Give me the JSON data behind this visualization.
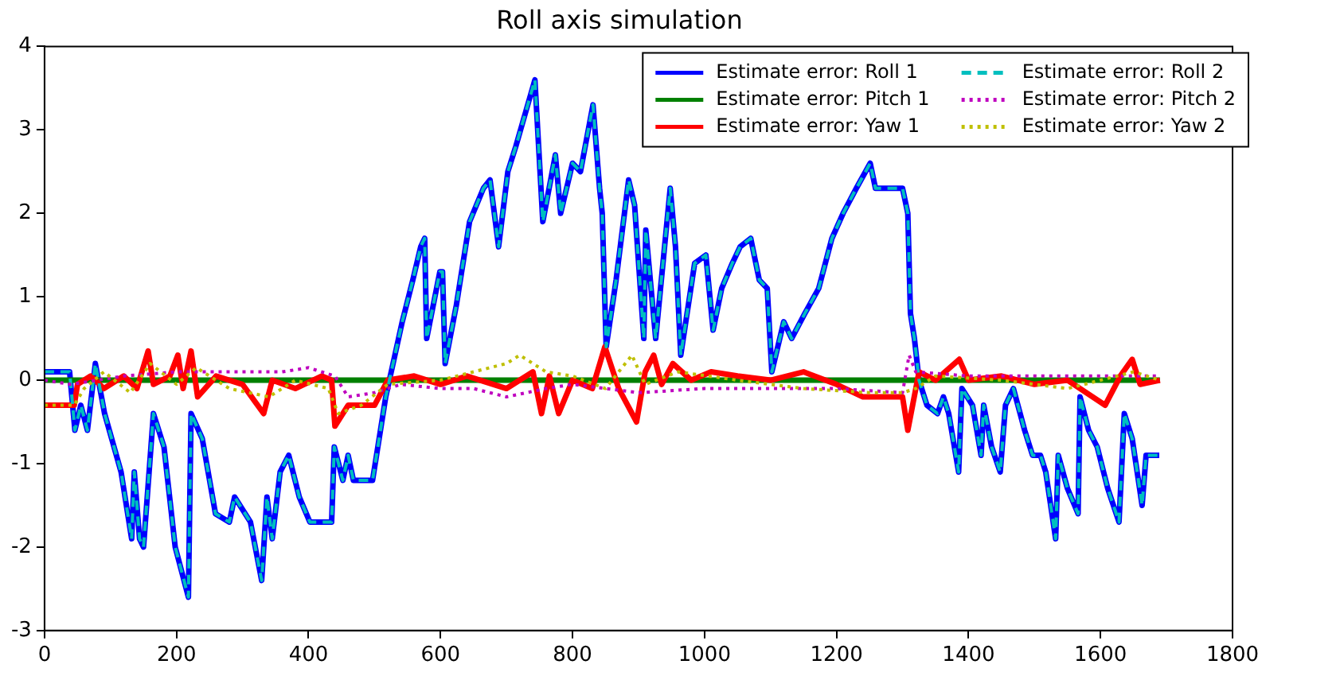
{
  "chart_data": {
    "type": "line",
    "title": "Roll axis simulation",
    "xlim": [
      0,
      1800
    ],
    "xticks": [
      0,
      200,
      400,
      600,
      800,
      1000,
      1200,
      1400,
      1600,
      1800
    ],
    "ylim": [
      -3,
      4
    ],
    "yticks": [
      -3,
      -2,
      -1,
      0,
      1,
      2,
      3,
      4
    ],
    "grid": false,
    "legend": "top right",
    "marker": "none",
    "series": [
      {
        "name": "Estimate error: Roll 1",
        "color": "#0000ff",
        "line_style": "solid",
        "x": [
          0,
          38,
          46,
          55,
          65,
          77,
          91,
          116,
          132,
          136,
          144,
          150,
          165,
          181,
          198,
          218,
          222,
          239,
          259,
          280,
          288,
          312,
          329,
          337,
          345,
          357,
          370,
          386,
          402,
          435,
          439,
          452,
          460,
          468,
          497,
          517,
          542,
          558,
          570,
          576,
          579,
          599,
          603,
          607,
          624,
          644,
          665,
          675,
          688,
          702,
          714,
          743,
          755,
          774,
          782,
          800,
          812,
          831,
          841,
          845,
          851,
          866,
          885,
          894,
          908,
          911,
          919,
          926,
          948,
          956,
          964,
          985,
          1002,
          1013,
          1026,
          1042,
          1054,
          1070,
          1083,
          1095,
          1102,
          1120,
          1132,
          1152,
          1173,
          1193,
          1210,
          1230,
          1251,
          1259,
          1300,
          1308,
          1312,
          1318,
          1325,
          1337,
          1353,
          1362,
          1370,
          1385,
          1390,
          1406,
          1419,
          1423,
          1435,
          1448,
          1456,
          1468,
          1485,
          1497,
          1509,
          1517,
          1532,
          1536,
          1550,
          1566,
          1569,
          1582,
          1595,
          1611,
          1628,
          1636,
          1648,
          1663,
          1669,
          1689
        ],
        "values": [
          0.1,
          0.1,
          -0.6,
          -0.3,
          -0.6,
          0.2,
          -0.4,
          -1.1,
          -1.9,
          -1.1,
          -1.9,
          -2.0,
          -0.4,
          -0.8,
          -2.0,
          -2.6,
          -0.4,
          -0.7,
          -1.6,
          -1.7,
          -1.4,
          -1.7,
          -2.4,
          -1.4,
          -1.9,
          -1.1,
          -0.9,
          -1.4,
          -1.7,
          -1.7,
          -0.8,
          -1.2,
          -0.9,
          -1.2,
          -1.2,
          -0.2,
          0.7,
          1.2,
          1.6,
          1.7,
          0.5,
          1.3,
          1.3,
          0.2,
          0.9,
          1.9,
          2.3,
          2.4,
          1.6,
          2.5,
          2.8,
          3.6,
          1.9,
          2.7,
          2.0,
          2.6,
          2.5,
          3.3,
          2.3,
          2.0,
          0.4,
          1.2,
          2.4,
          2.1,
          0.5,
          1.8,
          1.1,
          0.5,
          2.3,
          1.6,
          0.3,
          1.4,
          1.5,
          0.6,
          1.1,
          1.4,
          1.6,
          1.7,
          1.2,
          1.1,
          0.1,
          0.7,
          0.5,
          0.8,
          1.1,
          1.7,
          2.0,
          2.3,
          2.6,
          2.3,
          2.3,
          2.0,
          0.8,
          0.5,
          0.0,
          -0.3,
          -0.4,
          -0.2,
          -0.4,
          -1.1,
          -0.1,
          -0.3,
          -0.9,
          -0.3,
          -0.8,
          -1.1,
          -0.3,
          -0.1,
          -0.6,
          -0.9,
          -0.9,
          -1.1,
          -1.9,
          -0.9,
          -1.3,
          -1.6,
          -0.2,
          -0.6,
          -0.8,
          -1.3,
          -1.7,
          -0.4,
          -0.7,
          -1.5,
          -0.9,
          -0.9
        ]
      },
      {
        "name": "Estimate error: Pitch 1",
        "color": "#008000",
        "line_style": "solid",
        "x": [
          0,
          1690
        ],
        "values": [
          0,
          0
        ]
      },
      {
        "name": "Estimate error: Yaw 1",
        "color": "#ff0000",
        "line_style": "solid",
        "x": [
          0,
          45,
          50,
          70,
          90,
          120,
          140,
          157,
          165,
          190,
          202,
          210,
          222,
          232,
          260,
          300,
          332,
          345,
          380,
          420,
          435,
          440,
          460,
          500,
          520,
          560,
          600,
          640,
          700,
          740,
          753,
          765,
          779,
          800,
          830,
          849,
          870,
          897,
          910,
          923,
          935,
          952,
          980,
          1010,
          1050,
          1100,
          1150,
          1200,
          1240,
          1300,
          1308,
          1325,
          1350,
          1386,
          1400,
          1450,
          1500,
          1550,
          1607,
          1630,
          1648,
          1660,
          1690
        ],
        "values": [
          -0.3,
          -0.3,
          -0.05,
          0.05,
          -0.1,
          0.05,
          -0.1,
          0.35,
          -0.05,
          0.05,
          0.3,
          -0.1,
          0.35,
          -0.2,
          0.05,
          -0.05,
          -0.4,
          0,
          -0.1,
          0.05,
          0,
          -0.55,
          -0.3,
          -0.3,
          0,
          0.05,
          -0.05,
          0.05,
          -0.1,
          0.1,
          -0.4,
          0.05,
          -0.4,
          0,
          -0.1,
          0.4,
          -0.1,
          -0.5,
          0.1,
          0.3,
          -0.05,
          0.2,
          0,
          0.1,
          0.05,
          0,
          0.1,
          -0.05,
          -0.2,
          -0.2,
          -0.6,
          0.1,
          0,
          0.25,
          0,
          0.05,
          -0.05,
          0,
          -0.3,
          0.05,
          0.25,
          -0.05,
          0
        ]
      },
      {
        "name": "Estimate error: Roll 2",
        "color": "#00bfbf",
        "line_style": "dashed",
        "x": [
          0,
          38,
          46,
          55,
          65,
          77,
          91,
          116,
          132,
          136,
          144,
          150,
          165,
          181,
          198,
          218,
          222,
          239,
          259,
          280,
          288,
          312,
          329,
          337,
          345,
          357,
          370,
          386,
          402,
          435,
          439,
          452,
          460,
          468,
          497,
          517,
          542,
          558,
          570,
          576,
          579,
          599,
          603,
          607,
          624,
          644,
          665,
          675,
          688,
          702,
          714,
          743,
          755,
          774,
          782,
          800,
          812,
          831,
          841,
          845,
          851,
          866,
          885,
          894,
          908,
          911,
          919,
          926,
          948,
          956,
          964,
          985,
          1002,
          1013,
          1026,
          1042,
          1054,
          1070,
          1083,
          1095,
          1102,
          1120,
          1132,
          1152,
          1173,
          1193,
          1210,
          1230,
          1251,
          1259,
          1300,
          1308,
          1312,
          1318,
          1325,
          1337,
          1353,
          1362,
          1370,
          1385,
          1390,
          1406,
          1419,
          1423,
          1435,
          1448,
          1456,
          1468,
          1485,
          1497,
          1509,
          1517,
          1532,
          1536,
          1550,
          1566,
          1569,
          1582,
          1595,
          1611,
          1628,
          1636,
          1648,
          1663,
          1669,
          1689
        ],
        "values": [
          0.1,
          0.1,
          -0.6,
          -0.3,
          -0.6,
          0.2,
          -0.4,
          -1.1,
          -1.9,
          -1.1,
          -1.9,
          -2.0,
          -0.4,
          -0.8,
          -2.0,
          -2.6,
          -0.4,
          -0.7,
          -1.6,
          -1.7,
          -1.4,
          -1.7,
          -2.4,
          -1.4,
          -1.9,
          -1.1,
          -0.9,
          -1.4,
          -1.7,
          -1.7,
          -0.8,
          -1.2,
          -0.9,
          -1.2,
          -1.2,
          -0.2,
          0.7,
          1.2,
          1.6,
          1.7,
          0.5,
          1.3,
          1.3,
          0.2,
          0.9,
          1.9,
          2.3,
          2.4,
          1.6,
          2.5,
          2.8,
          3.6,
          1.9,
          2.7,
          2.0,
          2.6,
          2.5,
          3.3,
          2.3,
          2.0,
          0.4,
          1.2,
          2.4,
          2.1,
          0.5,
          1.8,
          1.1,
          0.5,
          2.3,
          1.6,
          0.3,
          1.4,
          1.5,
          0.6,
          1.1,
          1.4,
          1.6,
          1.7,
          1.2,
          1.1,
          0.1,
          0.7,
          0.5,
          0.8,
          1.1,
          1.7,
          2.0,
          2.3,
          2.6,
          2.3,
          2.3,
          2.0,
          0.8,
          0.5,
          0.0,
          -0.3,
          -0.4,
          -0.2,
          -0.4,
          -1.1,
          -0.1,
          -0.3,
          -0.9,
          -0.3,
          -0.8,
          -1.1,
          -0.3,
          -0.1,
          -0.6,
          -0.9,
          -0.9,
          -1.1,
          -1.9,
          -0.9,
          -1.3,
          -1.6,
          -0.2,
          -0.6,
          -0.8,
          -1.3,
          -1.7,
          -0.4,
          -0.7,
          -1.5,
          -0.9,
          -0.9
        ]
      },
      {
        "name": "Estimate error: Pitch 2",
        "color": "#bf00bf",
        "line_style": "dotted",
        "x": [
          0,
          40,
          80,
          120,
          200,
          300,
          360,
          400,
          440,
          460,
          500,
          540,
          600,
          650,
          700,
          760,
          800,
          850,
          900,
          1000,
          1100,
          1200,
          1300,
          1310,
          1320,
          1400,
          1500,
          1600,
          1690
        ],
        "values": [
          0,
          -0.05,
          0,
          0.05,
          0.1,
          0.1,
          0.1,
          0.15,
          0.05,
          -0.2,
          -0.15,
          -0.05,
          -0.1,
          -0.1,
          -0.2,
          -0.1,
          -0.05,
          -0.1,
          -0.15,
          -0.1,
          -0.1,
          -0.1,
          -0.15,
          0.3,
          0.1,
          0.05,
          0.05,
          0.05,
          0.05
        ]
      },
      {
        "name": "Estimate error: Yaw 2",
        "color": "#bfbf00",
        "line_style": "dotted",
        "x": [
          0,
          45,
          60,
          90,
          130,
          160,
          200,
          230,
          280,
          340,
          380,
          430,
          445,
          480,
          520,
          600,
          700,
          720,
          760,
          800,
          850,
          890,
          910,
          960,
          1050,
          1150,
          1250,
          1300,
          1320,
          1350,
          1450,
          1550,
          1650,
          1690
        ],
        "values": [
          -0.3,
          -0.3,
          -0.1,
          0.1,
          -0.15,
          0.2,
          -0.05,
          0.15,
          -0.1,
          -0.2,
          0,
          -0.1,
          -0.4,
          -0.3,
          -0.05,
          0,
          0.2,
          0.3,
          0.1,
          0.05,
          -0.1,
          0.3,
          -0.05,
          0.1,
          0,
          -0.1,
          -0.15,
          -0.15,
          -0.1,
          0.05,
          0,
          -0.1,
          0.1,
          0
        ]
      }
    ]
  }
}
